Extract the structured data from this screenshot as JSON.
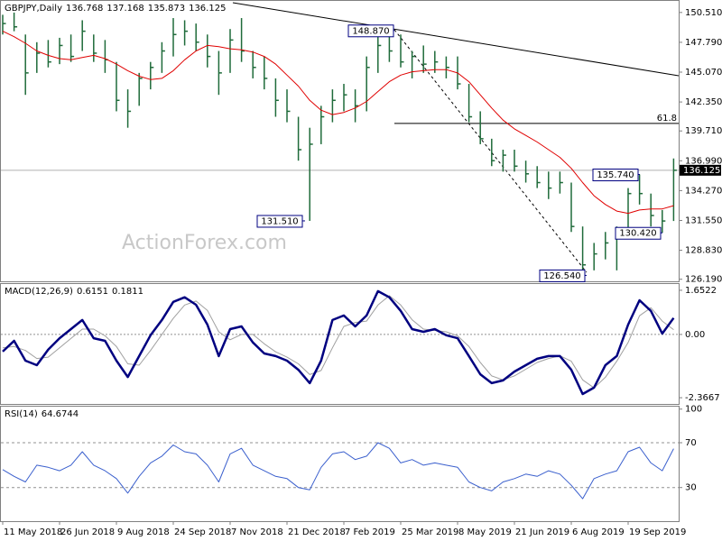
{
  "chart_data": [
    {
      "type": "ohlc",
      "title": "GBPJPY,Daily",
      "header_values": [
        136.768,
        137.168,
        135.873,
        136.125
      ],
      "categories": [
        "11 May 2018",
        null,
        null,
        null,
        null,
        "26 Jun 2018",
        null,
        null,
        null,
        null,
        "9 Aug 2018",
        null,
        null,
        null,
        null,
        "24 Sep 2018",
        null,
        null,
        null,
        null,
        "7 Nov 2018",
        null,
        null,
        null,
        null,
        "21 Dec 2018",
        null,
        null,
        null,
        null,
        "7 Feb 2019",
        null,
        null,
        null,
        null,
        "25 Mar 2019",
        null,
        null,
        null,
        null,
        "8 May 2019",
        null,
        null,
        null,
        null,
        "21 Jun 2019",
        null,
        null,
        null,
        null,
        "6 Aug 2019",
        null,
        null,
        null,
        null,
        "19 Sep 2019",
        null,
        null,
        null,
        null
      ],
      "high": [
        150.3,
        150.5,
        148.5,
        147.8,
        148.0,
        148.2,
        148.5,
        149.8,
        148.5,
        148.0,
        146.0,
        143.5,
        145.0,
        146.0,
        147.8,
        150.0,
        149.8,
        149.5,
        148.5,
        147.0,
        149.0,
        150.0,
        147.0,
        146.5,
        144.5,
        143.5,
        141.0,
        140.0,
        142.0,
        143.5,
        144.0,
        143.5,
        146.5,
        148.5,
        148.87,
        148.5,
        147.0,
        147.5,
        147.0,
        146.5,
        146.5,
        144.0,
        141.5,
        139.0,
        138.0,
        138.0,
        137.0,
        136.5,
        136.0,
        136.0,
        135.0,
        131.0,
        129.5,
        130.5,
        131.0,
        134.5,
        135.74,
        134.0,
        132.5,
        137.2
      ],
      "low": [
        148.5,
        148.8,
        143.0,
        145.0,
        145.5,
        145.8,
        146.0,
        147.0,
        146.0,
        145.0,
        141.5,
        140.0,
        142.0,
        143.5,
        145.0,
        146.5,
        147.5,
        147.0,
        145.5,
        143.0,
        145.0,
        146.0,
        144.5,
        143.5,
        141.0,
        140.5,
        137.0,
        131.51,
        138.5,
        140.5,
        141.5,
        140.5,
        141.5,
        145.0,
        146.0,
        145.5,
        144.5,
        145.0,
        145.0,
        144.5,
        143.5,
        140.5,
        138.5,
        136.5,
        136.0,
        136.0,
        135.0,
        134.5,
        133.5,
        134.0,
        130.5,
        126.54,
        127.0,
        128.0,
        127.0,
        130.5,
        133.0,
        131.0,
        130.42,
        131.5
      ],
      "close": [
        149.5,
        149.2,
        145.0,
        146.8,
        146.0,
        147.5,
        146.5,
        148.8,
        146.8,
        146.2,
        142.5,
        141.5,
        144.5,
        145.5,
        147.0,
        148.5,
        148.8,
        147.8,
        146.5,
        145.0,
        148.0,
        147.0,
        145.5,
        144.5,
        142.5,
        141.5,
        138.0,
        138.5,
        141.0,
        142.5,
        143.0,
        142.0,
        145.5,
        147.5,
        147.0,
        146.0,
        146.5,
        145.8,
        146.0,
        145.5,
        144.0,
        141.0,
        139.0,
        137.0,
        137.5,
        136.5,
        135.8,
        135.0,
        134.5,
        135.0,
        131.0,
        127.5,
        128.5,
        129.5,
        130.5,
        134.0,
        134.0,
        132.0,
        131.5,
        136.125
      ],
      "color": "#1f6b3a",
      "ma": {
        "color": "#e00000",
        "values": [
          148.8,
          148.3,
          147.7,
          147.0,
          146.6,
          146.3,
          146.2,
          146.4,
          146.6,
          146.3,
          145.8,
          145.2,
          144.7,
          144.4,
          144.5,
          145.2,
          146.2,
          147.0,
          147.5,
          147.4,
          147.2,
          147.1,
          146.9,
          146.5,
          145.8,
          144.8,
          143.8,
          142.5,
          141.6,
          141.2,
          141.4,
          141.8,
          142.4,
          143.3,
          144.2,
          144.8,
          145.1,
          145.2,
          145.3,
          145.3,
          145.0,
          144.2,
          143.0,
          141.8,
          140.7,
          139.9,
          139.3,
          138.7,
          138.0,
          137.3,
          136.3,
          135.0,
          133.8,
          133.0,
          132.4,
          132.2,
          132.5,
          132.6,
          132.6,
          132.9
        ]
      },
      "ylim": [
        126.0,
        151.4
      ],
      "yticks": [
        {
          "value": 150.51,
          "label": "150.510"
        },
        {
          "value": 147.79,
          "label": "147.790"
        },
        {
          "value": 145.07,
          "label": "145.070"
        },
        {
          "value": 142.35,
          "label": "142.350"
        },
        {
          "value": 139.71,
          "label": "139.710"
        },
        {
          "value": 136.99,
          "label": "136.990"
        },
        {
          "value": 134.27,
          "label": "134.270"
        },
        {
          "value": 131.55,
          "label": "131.550"
        },
        {
          "value": 128.83,
          "label": "128.830"
        },
        {
          "value": 126.19,
          "label": "126.190"
        }
      ],
      "annotations": [
        {
          "value": 148.87,
          "label": "148.870"
        },
        {
          "value": 131.51,
          "label": "131.510"
        },
        {
          "value": 126.54,
          "label": "126.540"
        },
        {
          "value": 135.74,
          "label": "135.740"
        },
        {
          "value": 130.42,
          "label": "130.420"
        }
      ],
      "fib_level": {
        "value": 140.4,
        "label": "61.8"
      },
      "watermark": "ActionForex.com"
    },
    {
      "type": "macd",
      "title": "MACD(12,26,9)",
      "macd": {
        "color": "#000080",
        "values": [
          -0.64,
          -0.24,
          -0.98,
          -1.15,
          -0.57,
          -0.14,
          0.2,
          0.54,
          -0.14,
          -0.24,
          -0.98,
          -1.59,
          -0.81,
          -0.03,
          0.54,
          1.22,
          1.39,
          1.11,
          0.37,
          -0.81,
          0.2,
          0.3,
          -0.3,
          -0.71,
          -0.81,
          -0.98,
          -1.32,
          -1.82,
          -0.98,
          0.54,
          0.71,
          0.3,
          0.71,
          1.62,
          1.39,
          0.88,
          0.2,
          0.1,
          0.2,
          -0.03,
          -0.14,
          -0.81,
          -1.49,
          -1.82,
          -1.72,
          -1.39,
          -1.15,
          -0.91,
          -0.81,
          -0.81,
          -1.32,
          -2.23,
          -1.99,
          -1.15,
          -0.81,
          0.37,
          1.28,
          0.88,
          0.03,
          0.6151
        ]
      },
      "signal": {
        "color": "#a0a0a0",
        "values": [
          -0.5,
          -0.45,
          -0.6,
          -0.9,
          -0.85,
          -0.5,
          -0.15,
          0.2,
          0.2,
          -0.05,
          -0.45,
          -1.1,
          -1.15,
          -0.6,
          0.0,
          0.6,
          1.1,
          1.25,
          0.9,
          0.1,
          -0.2,
          0.0,
          0.0,
          -0.35,
          -0.65,
          -0.85,
          -1.1,
          -1.5,
          -1.35,
          -0.5,
          0.3,
          0.45,
          0.5,
          1.1,
          1.45,
          1.1,
          0.55,
          0.2,
          0.15,
          0.1,
          -0.05,
          -0.45,
          -1.05,
          -1.55,
          -1.7,
          -1.55,
          -1.3,
          -1.05,
          -0.9,
          -0.8,
          -1.0,
          -1.7,
          -2.0,
          -1.6,
          -1.0,
          -0.3,
          0.7,
          1.0,
          0.5,
          0.1811
        ]
      },
      "ylim": [
        -2.6,
        1.92
      ],
      "yticks": [
        1.6522,
        {
          "value": 0,
          "label": "0.00"
        },
        -2.3667
      ],
      "reference_lines": [
        0
      ]
    },
    {
      "type": "rsi",
      "title": "RSI(14)",
      "color": "#3a5fcd",
      "values": [
        46,
        40,
        35,
        50,
        48,
        45,
        50,
        62,
        50,
        45,
        38,
        25,
        40,
        52,
        58,
        68,
        62,
        60,
        50,
        35,
        60,
        65,
        50,
        45,
        40,
        38,
        30,
        28,
        48,
        60,
        62,
        55,
        58,
        70,
        65,
        52,
        55,
        50,
        52,
        50,
        48,
        35,
        30,
        27,
        35,
        38,
        42,
        40,
        45,
        42,
        32,
        20,
        38,
        42,
        45,
        62,
        66,
        52,
        45,
        64.6744
      ],
      "ylim": [
        0,
        103
      ],
      "yticks": [
        100,
        70,
        30
      ],
      "reference_lines": [
        70,
        30
      ]
    }
  ]
}
